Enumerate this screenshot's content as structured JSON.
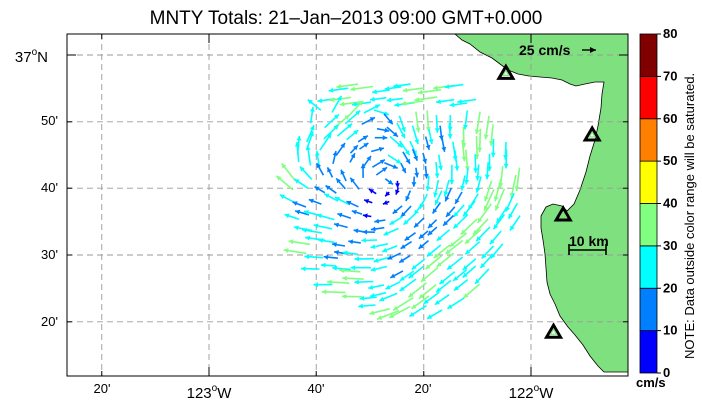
{
  "title": "MNTY Totals: 21–Jan–2013 09:00 GMT+0.000",
  "y_axis": {
    "ticks": [
      {
        "label": "37",
        "sup": "o",
        "suffix": "N",
        "value": 37.0,
        "major": true
      },
      {
        "label": "50'",
        "value": 36.833,
        "major": false
      },
      {
        "label": "40'",
        "value": 36.667,
        "major": false
      },
      {
        "label": "30'",
        "value": 36.5,
        "major": false
      },
      {
        "label": "20'",
        "value": 36.333,
        "major": false
      }
    ]
  },
  "x_axis": {
    "ticks": [
      {
        "label": "20'",
        "value": -123.333,
        "major": false
      },
      {
        "label": "123",
        "sup": "o",
        "suffix": "W",
        "value": -123.0,
        "major": true
      },
      {
        "label": "40'",
        "value": -122.667,
        "major": false
      },
      {
        "label": "20'",
        "value": -122.333,
        "major": false
      },
      {
        "label": "122",
        "sup": "o",
        "suffix": "W",
        "value": -122.0,
        "major": true
      }
    ]
  },
  "scale": {
    "arrow_label": "25 cm/s",
    "bar_label": "10 km"
  },
  "colorbar": {
    "unit": "cm/s",
    "ticks": [
      "0",
      "10",
      "20",
      "30",
      "40",
      "50",
      "60",
      "70",
      "80"
    ],
    "colors": [
      "#0000ff",
      "#0080ff",
      "#00ffff",
      "#80ff80",
      "#ffff00",
      "#ff8000",
      "#ff0000",
      "#800000"
    ],
    "note": "NOTE: Data outside color range will be saturated."
  },
  "land_color": "#7fe07f",
  "stations": [
    {
      "name": "station-north",
      "lon": -122.078,
      "lat": 36.954
    },
    {
      "name": "station-east-upper",
      "lon": -121.81,
      "lat": 36.8
    },
    {
      "name": "station-east-middle",
      "lon": -121.9,
      "lat": 36.6
    },
    {
      "name": "station-south",
      "lon": -121.93,
      "lat": 36.307
    }
  ]
}
